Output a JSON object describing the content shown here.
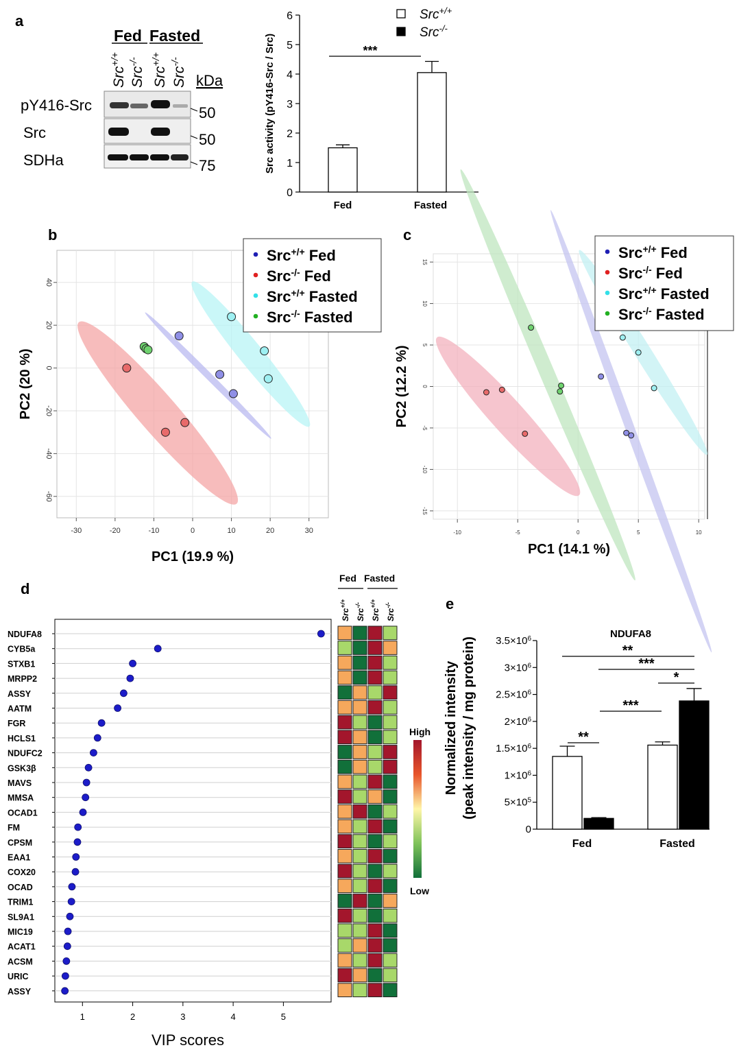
{
  "panels": {
    "a": "a",
    "b": "b",
    "c": "c",
    "d": "d",
    "e": "e"
  },
  "blot": {
    "group_labels": [
      "Fed",
      "Fasted"
    ],
    "lane_labels": [
      "Src+/+",
      "Src-/-",
      "Src+/+",
      "Src-/-"
    ],
    "row_labels": [
      "pY416-Src",
      "Src",
      "SDHa"
    ],
    "kda_label": "kDa",
    "kda_values": [
      "50",
      "50",
      "75"
    ]
  },
  "chart_data": [
    {
      "id": "a",
      "type": "bar",
      "categories": [
        "Fed",
        "Fasted"
      ],
      "series": [
        {
          "name": "Src+/+",
          "values": [
            1.5,
            4.05
          ],
          "errors": [
            0.1,
            0.38
          ]
        },
        {
          "name": "Src-/-",
          "values": [
            null,
            null
          ],
          "errors": [
            null,
            null
          ]
        }
      ],
      "ylabel": "Src activity (pY416-Src / Src)",
      "ylim": [
        0,
        6
      ],
      "yticks": [
        "0",
        "1",
        "2",
        "3",
        "4",
        "5",
        "6"
      ],
      "significance": [
        {
          "label": "***"
        }
      ],
      "legend_position": "top-right",
      "legend_sup": [
        "+/+",
        "-/-"
      ]
    },
    {
      "id": "b",
      "type": "scatter",
      "xlabel": "PC1 (19.9 %)",
      "ylabel": "PC2 (20 %)",
      "xlim": [
        -35,
        35
      ],
      "ylim": [
        -70,
        55
      ],
      "xticks": [
        "-30",
        "-20",
        "-10",
        "0",
        "10",
        "20",
        "30"
      ],
      "yticks": [
        "-60",
        "-40",
        "-20",
        "0",
        "20",
        "40"
      ],
      "grid": true,
      "legend_position": "top-right",
      "legend": [
        {
          "label": "Src",
          "sup": "+/+",
          "suffix": "Fed",
          "color": "#1f1fb4"
        },
        {
          "label": "Src",
          "sup": "-/-",
          "suffix": "Fed",
          "color": "#e02020"
        },
        {
          "label": "Src",
          "sup": "+/+",
          "suffix": "Fasted",
          "color": "#33e0e8"
        },
        {
          "label": "Src",
          "sup": "-/-",
          "suffix": "Fasted",
          "color": "#22b022"
        }
      ],
      "series": [
        {
          "name": "Src+/+ Fed",
          "color": "#8f8fe6",
          "points": [
            [
              -3.5,
              15
            ],
            [
              7,
              -3
            ],
            [
              10.5,
              -12
            ]
          ]
        },
        {
          "name": "Src-/- Fed",
          "color": "#e86a6a",
          "points": [
            [
              -17,
              0
            ],
            [
              -7,
              -30
            ],
            [
              -2,
              -25.5
            ]
          ]
        },
        {
          "name": "Src+/+ Fasted",
          "color": "#9ef0f2",
          "points": [
            [
              10,
              24
            ],
            [
              18.5,
              8
            ],
            [
              19.5,
              -5
            ]
          ]
        },
        {
          "name": "Src-/- Fasted",
          "color": "#6fd26f",
          "points": [
            [
              -12.5,
              10
            ],
            [
              -12,
              9
            ],
            [
              -11.5,
              8.5
            ]
          ]
        }
      ],
      "ellipses": [
        {
          "series": "Src-/- Fed",
          "color": "#f4a6a6",
          "cx": -9,
          "cy": -21,
          "rx": 31,
          "ry": 9,
          "angle": -49
        },
        {
          "series": "Src+/+ Fed",
          "color": "#b9b9f0",
          "cx": 4,
          "cy": -3.5,
          "rx": 23,
          "ry": 1.6,
          "angle": -45
        },
        {
          "series": "Src+/+ Fasted",
          "color": "#b8f4f6",
          "cx": 15,
          "cy": 6.5,
          "rx": 24,
          "ry": 5.5,
          "angle": -51
        }
      ]
    },
    {
      "id": "c",
      "type": "scatter",
      "xlabel": "PC1 (14.1 %)",
      "ylabel": "PC2 (12.2 %)",
      "xlim": [
        -12,
        10.5
      ],
      "ylim": [
        -16,
        16
      ],
      "xticks": [
        "-10",
        "-5",
        "0",
        "5",
        "10"
      ],
      "yticks": [
        "-15",
        "-10",
        "-5",
        "0",
        "5",
        "10",
        "15"
      ],
      "grid": true,
      "legend_position": "top-right",
      "legend": [
        {
          "label": "Src",
          "sup": "+/+",
          "suffix": "Fed",
          "color": "#1f1fb4"
        },
        {
          "label": "Src",
          "sup": "-/-",
          "suffix": "Fed",
          "color": "#e02020"
        },
        {
          "label": "Src",
          "sup": "+/+",
          "suffix": "Fasted",
          "color": "#33e0e8"
        },
        {
          "label": "Src",
          "sup": "-/-",
          "suffix": "Fasted",
          "color": "#22b022"
        }
      ],
      "series": [
        {
          "name": "Src+/+ Fed",
          "color": "#8f8fe6",
          "points": [
            [
              1.9,
              1.2
            ],
            [
              4,
              -5.6
            ],
            [
              4.4,
              -5.9
            ]
          ]
        },
        {
          "name": "Src-/- Fed",
          "color": "#e86a6a",
          "points": [
            [
              -7.6,
              -0.7
            ],
            [
              -6.3,
              -0.4
            ],
            [
              -4.4,
              -5.7
            ]
          ]
        },
        {
          "name": "Src+/+ Fasted",
          "color": "#9ef0f2",
          "points": [
            [
              3.7,
              5.9
            ],
            [
              5,
              4.1
            ],
            [
              6.3,
              -0.2
            ]
          ]
        },
        {
          "name": "Src-/- Fasted",
          "color": "#6fd26f",
          "points": [
            [
              -3.9,
              7.1
            ],
            [
              -1.4,
              0.1
            ],
            [
              -1.5,
              -0.6
            ]
          ]
        }
      ],
      "ellipses": [
        {
          "series": "Src-/- Fed",
          "color": "#f3b2be",
          "cx": -5.8,
          "cy": -3.6,
          "rx": 8.8,
          "ry": 2.0,
          "angle": -48
        },
        {
          "series": "Src-/- Fasted",
          "color": "#bfe6bf",
          "cx": -2.5,
          "cy": 1.4,
          "rx": 18.5,
          "ry": 0.9,
          "angle": -67
        },
        {
          "series": "Src+/+ Fed",
          "color": "#c4c4f0",
          "cx": 4.4,
          "cy": -5.4,
          "rx": 19.5,
          "ry": 0.55,
          "angle": -70
        },
        {
          "series": "Src+/+ Fasted",
          "color": "#c3f0f3",
          "cx": 5.4,
          "cy": 4.1,
          "rx": 10,
          "ry": 1.0,
          "angle": -58
        }
      ]
    },
    {
      "id": "d",
      "type": "scatter",
      "xlabel": "VIP scores",
      "xlim": [
        0.45,
        5.95
      ],
      "xticks": [
        "1",
        "2",
        "3",
        "4",
        "5"
      ],
      "grid": true,
      "genes": [
        "NDUFA8",
        "CYB5a",
        "STXB1",
        "MRPP2",
        "ASSY",
        "AATM",
        "FGR",
        "HCLS1",
        "NDUFC2",
        "GSK3β",
        "MAVS",
        "MMSA",
        "OCAD1",
        "FM",
        "CPSM",
        "EAA1",
        "COX20",
        "OCAD",
        "TRIM1",
        "SL9A1",
        "MIC19",
        "ACAT1",
        "ACSM",
        "URIC",
        "ASSY"
      ],
      "values": [
        5.75,
        2.5,
        2.0,
        1.95,
        1.82,
        1.7,
        1.38,
        1.3,
        1.22,
        1.12,
        1.08,
        1.06,
        1.01,
        0.91,
        0.9,
        0.87,
        0.86,
        0.79,
        0.78,
        0.75,
        0.71,
        0.7,
        0.68,
        0.66,
        0.65
      ],
      "point_color": "#1c1cc9"
    },
    {
      "id": "d-heatmap",
      "type": "heatmap",
      "group_labels": [
        "Fed",
        "Fasted"
      ],
      "columns": [
        "Src+/+",
        "Src-/-",
        "Src+/+",
        "Src-/-"
      ],
      "rows": [
        "NDUFA8",
        "CYB5a",
        "STXB1",
        "MRPP2",
        "ASSY",
        "AATM",
        "FGR",
        "HCLS1",
        "NDUFC2",
        "GSK3β",
        "MAVS",
        "MMSA",
        "OCAD1",
        "FM",
        "CPSM",
        "EAA1",
        "COX20",
        "OCAD",
        "TRIM1",
        "SL9A1",
        "MIC19",
        "ACAT1",
        "ACSM",
        "URIC",
        "ASSY"
      ],
      "values": [
        [
          3,
          1,
          4,
          2
        ],
        [
          2,
          1,
          4,
          3
        ],
        [
          3,
          1,
          4,
          2
        ],
        [
          3,
          1,
          4,
          2
        ],
        [
          1,
          3,
          2,
          4
        ],
        [
          3,
          3,
          4,
          2
        ],
        [
          4,
          2,
          1,
          2
        ],
        [
          4,
          3,
          1,
          2
        ],
        [
          1,
          3,
          2,
          4
        ],
        [
          1,
          3,
          2,
          4
        ],
        [
          3,
          2,
          4,
          1
        ],
        [
          4,
          2,
          3,
          1
        ],
        [
          3,
          4,
          1,
          2
        ],
        [
          3,
          2,
          4,
          1
        ],
        [
          4,
          2,
          1,
          2
        ],
        [
          3,
          2,
          4,
          1
        ],
        [
          4,
          2,
          1,
          2
        ],
        [
          3,
          2,
          4,
          1
        ],
        [
          1,
          4,
          1,
          3
        ],
        [
          4,
          2,
          1,
          2
        ],
        [
          2,
          2,
          4,
          1
        ],
        [
          2,
          3,
          4,
          1
        ],
        [
          3,
          2,
          4,
          2
        ],
        [
          4,
          3,
          1,
          2
        ],
        [
          3,
          2,
          4,
          1
        ]
      ],
      "scale_labels": {
        "high": "High",
        "low": "Low"
      },
      "palette": {
        "1": "#11703a",
        "2": "#a8d86a",
        "3": "#f6a85c",
        "4": "#a3162c"
      }
    },
    {
      "id": "e",
      "type": "bar",
      "title": "NDUFA8",
      "categories": [
        "Fed",
        "Fasted"
      ],
      "series": [
        {
          "name": "Src+/+",
          "values": [
            1350000,
            1560000
          ],
          "errors": [
            190000,
            60000
          ]
        },
        {
          "name": "Src-/-",
          "values": [
            200000,
            2380000
          ],
          "errors": [
            15000,
            230000
          ]
        }
      ],
      "ylabel_lines": [
        "Normalized intensity",
        "(peak intensity / mg protein)"
      ],
      "ylim": [
        0,
        3500000
      ],
      "ytick_values": [
        0,
        500000,
        1000000,
        1500000,
        2000000,
        2500000,
        3000000,
        3500000
      ],
      "ytick_mantissa": [
        "0",
        "5×10",
        "1×10",
        "1.5×10",
        "2×10",
        "2.5×10",
        "3×10",
        "3.5×10"
      ],
      "ytick_exponent": [
        "",
        "5",
        "6",
        "6",
        "6",
        "6",
        "6",
        "6"
      ],
      "significance": [
        {
          "label": "**"
        },
        {
          "label": "***"
        },
        {
          "label": "*"
        },
        {
          "label": "***"
        },
        {
          "label": "**"
        }
      ]
    }
  ]
}
